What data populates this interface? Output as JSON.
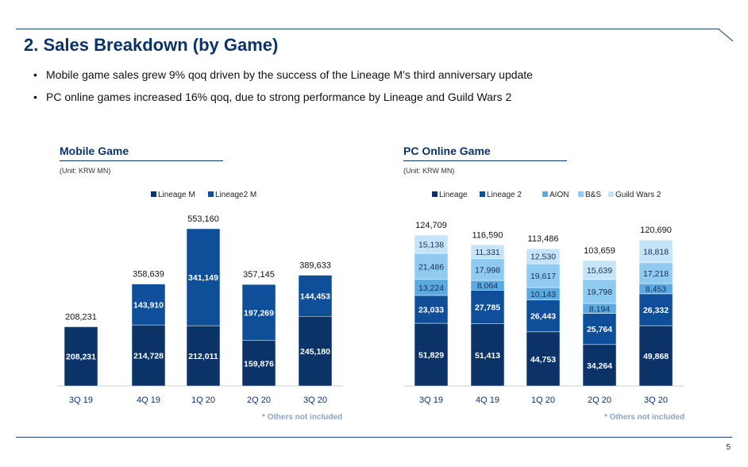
{
  "title": "2. Sales Breakdown (by Game)",
  "bullets": [
    "Mobile game sales grew 9% qoq driven by the success of the Lineage M’s third anniversary update",
    "PC online games increased 16% qoq, due to strong performance by Lineage and Guild Wars 2"
  ],
  "page_number": "5",
  "chart_data": [
    {
      "type": "bar",
      "stacked": true,
      "title": "Mobile Game",
      "unit": "(Unit: KRW MN)",
      "note": "* Others not included",
      "legend_position": "top",
      "categories": [
        "3Q 19",
        "4Q 19",
        "1Q 20",
        "2Q 20",
        "3Q 20"
      ],
      "series": [
        {
          "name": "Lineage M",
          "color": "#0b3368",
          "values": [
            208231,
            214728,
            212011,
            159876,
            245180
          ]
        },
        {
          "name": "Lineage2 M",
          "color": "#0f4f9a",
          "values": [
            null,
            143910,
            341149,
            197269,
            144453
          ]
        }
      ],
      "totals": [
        "208,231",
        "358,639",
        "553,160",
        "357,145",
        "389,633"
      ]
    },
    {
      "type": "bar",
      "stacked": true,
      "title": "PC Online Game",
      "unit": "(Unit: KRW MN)",
      "note": "* Others not included",
      "legend_position": "top",
      "categories": [
        "3Q 19",
        "4Q 19",
        "1Q 20",
        "2Q 20",
        "3Q 20"
      ],
      "series": [
        {
          "name": "Lineage",
          "color": "#0b3368",
          "values": [
            51829,
            51413,
            44753,
            34264,
            49868
          ]
        },
        {
          "name": "Lineage 2",
          "color": "#0f4f9a",
          "values": [
            23033,
            27785,
            26443,
            25764,
            26332
          ]
        },
        {
          "name": "AION",
          "color": "#5aa9e0",
          "values": [
            13224,
            8064,
            10143,
            8194,
            8453
          ]
        },
        {
          "name": "B&S",
          "color": "#8fcaf0",
          "values": [
            21486,
            17998,
            19617,
            19798,
            17218
          ]
        },
        {
          "name": "Guild Wars 2",
          "color": "#c6e4f8",
          "values": [
            15138,
            11331,
            12530,
            15639,
            18818
          ]
        }
      ],
      "totals": [
        "124,709",
        "116,590",
        "113,486",
        "103,659",
        "120,690"
      ]
    }
  ]
}
